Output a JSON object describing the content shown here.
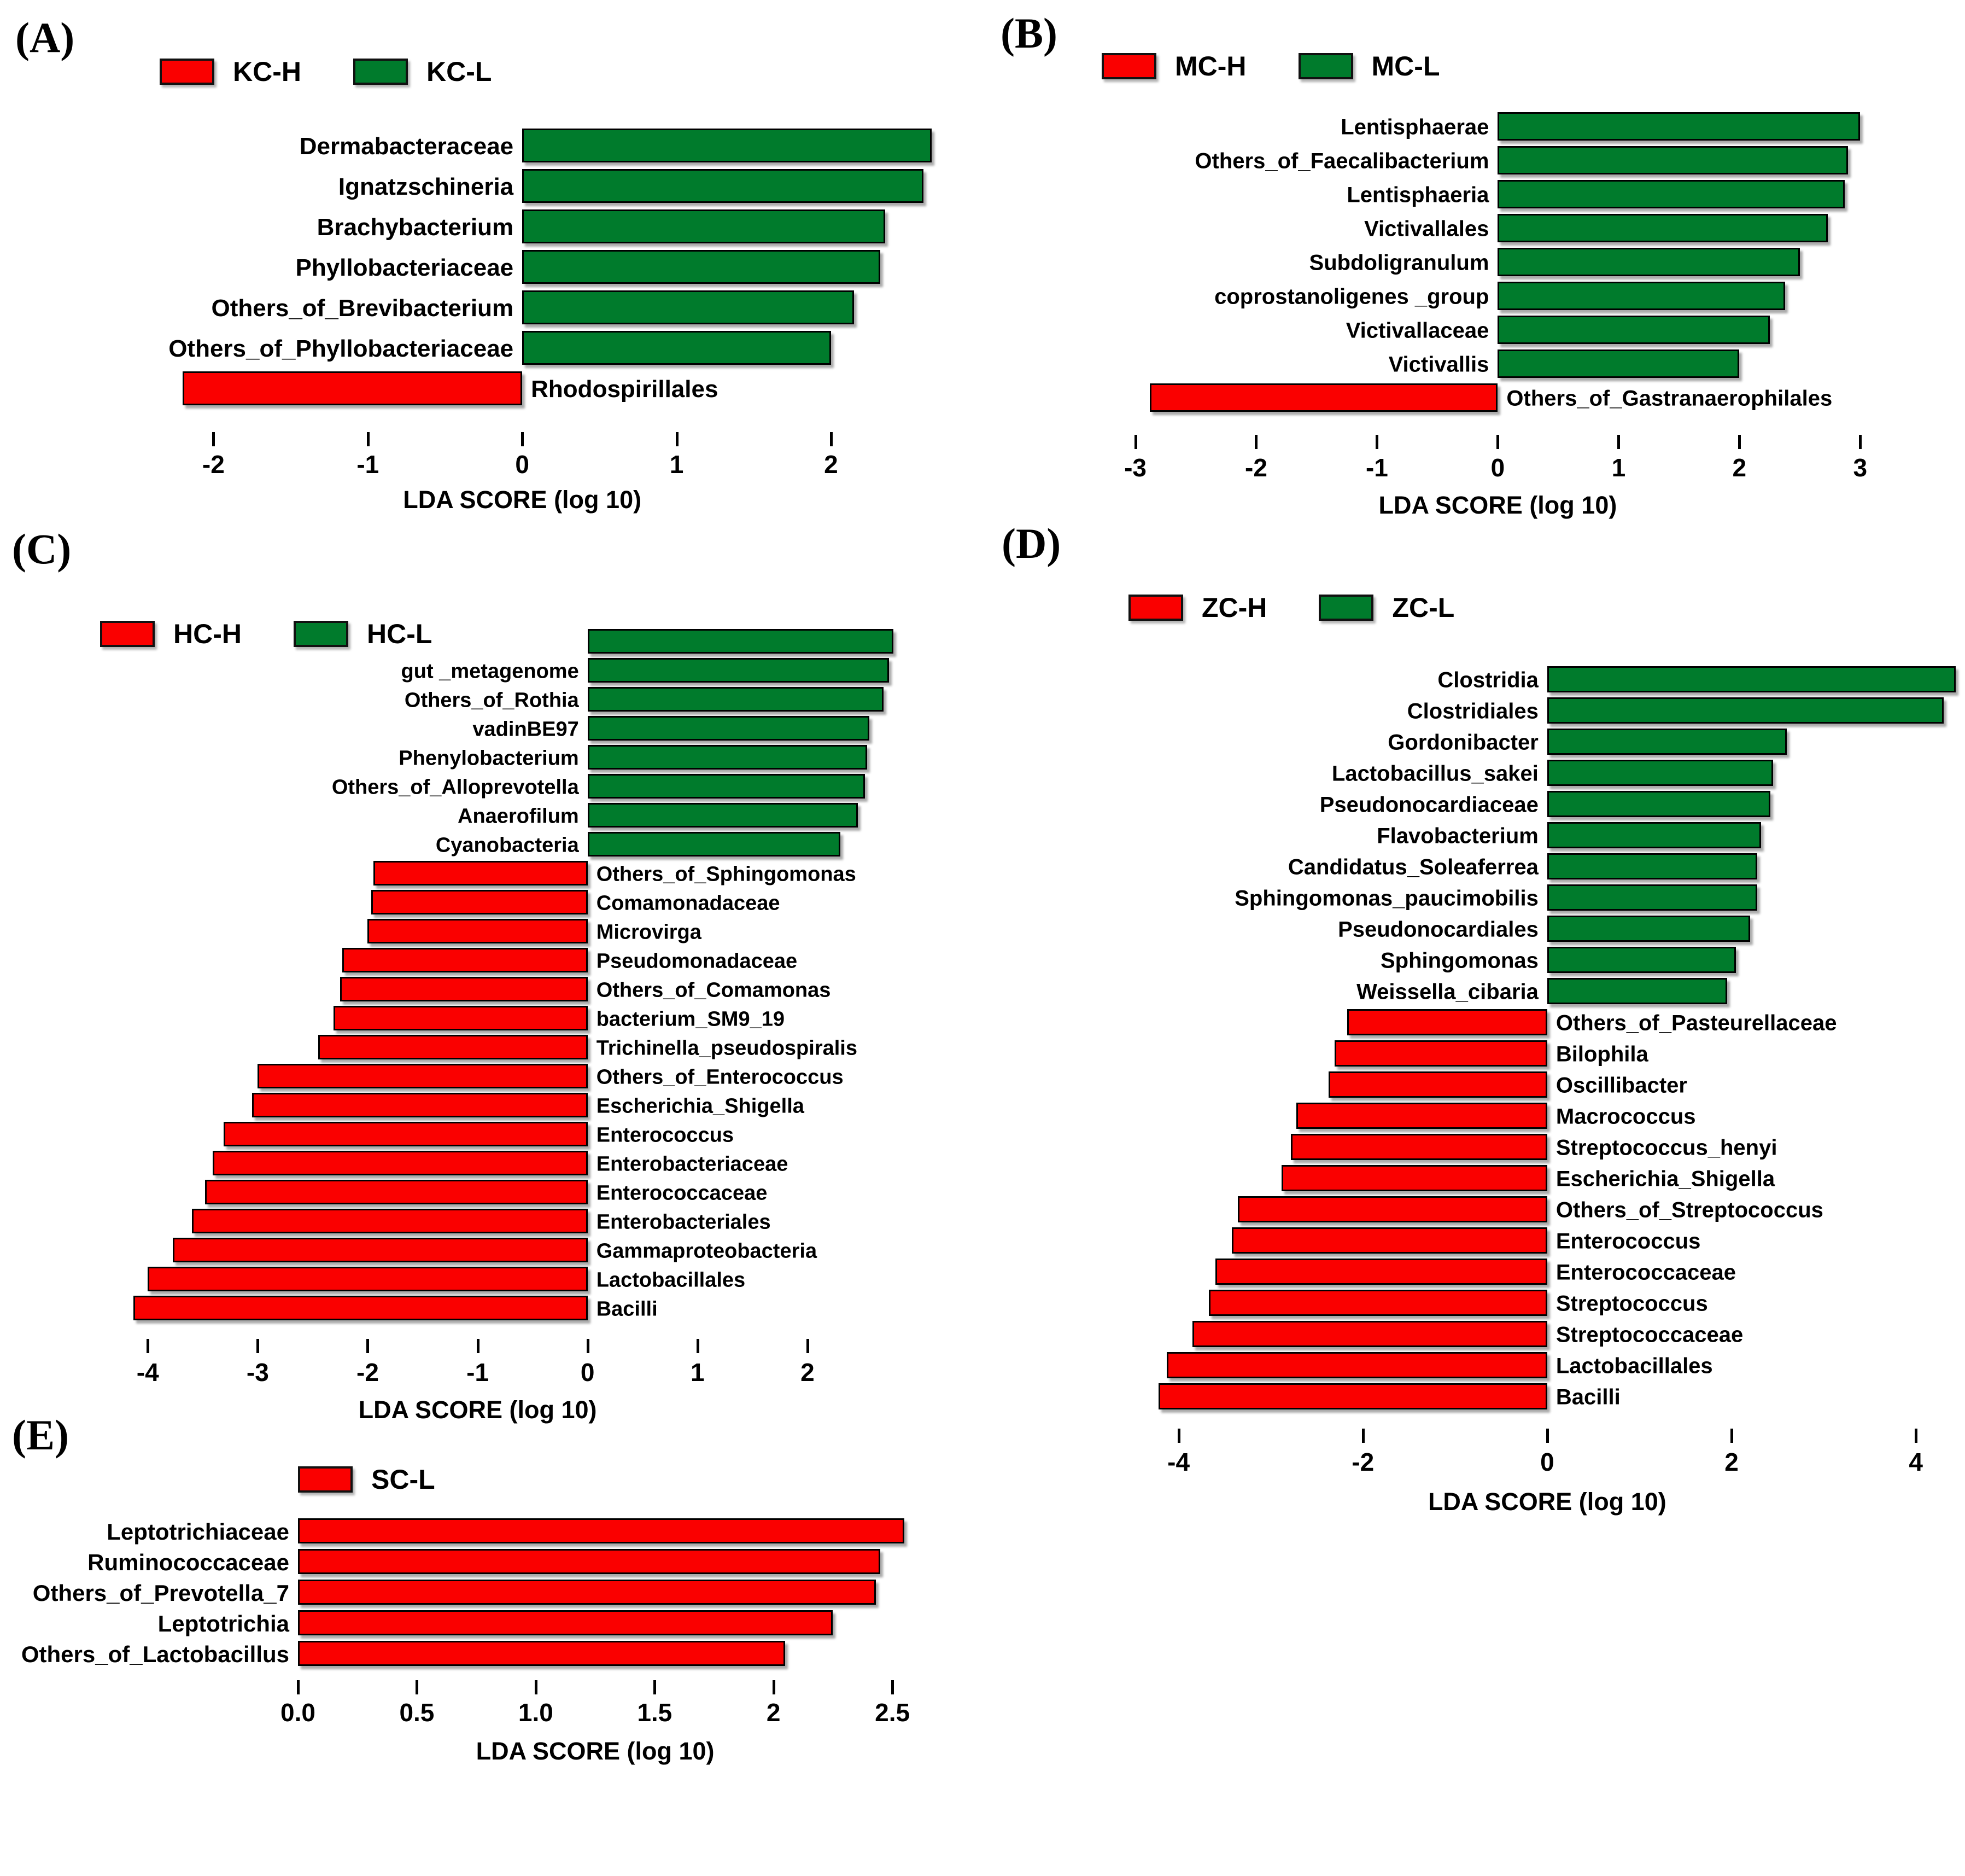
{
  "figure": {
    "axis_label": "LDA SCORE (log 10)",
    "colors": {
      "high_group_red": "#fa0000",
      "low_group_green": "#007b2c"
    }
  },
  "chart_data": [
    {
      "panel": "A",
      "letter_label": "(A)",
      "type": "bar",
      "orientation": "horizontal",
      "xlabel": "LDA SCORE (log 10)",
      "xlim": [
        -2.32,
        2.85
      ],
      "xticks": [
        {
          "value": -2,
          "label": "-2"
        },
        {
          "value": -1,
          "label": "-1"
        },
        {
          "value": 0,
          "label": "0"
        },
        {
          "value": 1,
          "label": "1"
        },
        {
          "value": 2,
          "label": "2"
        }
      ],
      "legend_position": "top",
      "legend": [
        {
          "label": "KC-H",
          "color": "#fa0000"
        },
        {
          "label": "KC-L",
          "color": "#007b2c"
        }
      ],
      "bars": [
        {
          "label": "Dermabacteraceae",
          "value": 2.65,
          "series": "KC-L"
        },
        {
          "label": "Ignatzschineria",
          "value": 2.6,
          "series": "KC-L"
        },
        {
          "label": "Brachybacterium",
          "value": 2.35,
          "series": "KC-L"
        },
        {
          "label": "Phyllobacteriaceae",
          "value": 2.32,
          "series": "KC-L"
        },
        {
          "label": "Others_of_Brevibacterium",
          "value": 2.15,
          "series": "KC-L"
        },
        {
          "label": "Others_of_Phyllobacteriaceae",
          "value": 2.0,
          "series": "KC-L"
        },
        {
          "label": "Rhodospirillales",
          "value": -2.2,
          "series": "KC-H"
        }
      ]
    },
    {
      "panel": "B",
      "letter_label": "(B)",
      "type": "bar",
      "orientation": "horizontal",
      "xlabel": "LDA SCORE (log 10)",
      "xlim": [
        -3.12,
        3.08
      ],
      "xticks": [
        {
          "value": -3,
          "label": "-3"
        },
        {
          "value": -2,
          "label": "-2"
        },
        {
          "value": -1,
          "label": "-1"
        },
        {
          "value": 0,
          "label": "0"
        },
        {
          "value": 1,
          "label": "1"
        },
        {
          "value": 2,
          "label": "2"
        },
        {
          "value": 3,
          "label": "3"
        }
      ],
      "legend_position": "top",
      "legend": [
        {
          "label": "MC-H",
          "color": "#fa0000"
        },
        {
          "label": "MC-L",
          "color": "#007b2c"
        }
      ],
      "bars": [
        {
          "label": "Lentisphaerae",
          "value": 3.0,
          "series": "MC-L"
        },
        {
          "label": "Others_of_Faecalibacterium",
          "value": 2.9,
          "series": "MC-L"
        },
        {
          "label": "Lentisphaeria",
          "value": 2.87,
          "series": "MC-L"
        },
        {
          "label": "Victivallales",
          "value": 2.73,
          "series": "MC-L"
        },
        {
          "label": "Subdoligranulum",
          "value": 2.5,
          "series": "MC-L"
        },
        {
          "label": "coprostanoligenes _group",
          "value": 2.38,
          "series": "MC-L"
        },
        {
          "label": "Victivallaceae",
          "value": 2.25,
          "series": "MC-L"
        },
        {
          "label": "Victivallis",
          "value": 2.0,
          "series": "MC-L"
        },
        {
          "label": "Others_of_Gastranaerophilales",
          "value": -2.88,
          "series": "MC-H"
        }
      ]
    },
    {
      "panel": "C",
      "letter_label": "(C)",
      "type": "bar",
      "orientation": "horizontal",
      "xlabel": "LDA SCORE (log 10)",
      "xlim": [
        -4.2,
        2.91
      ],
      "xticks": [
        {
          "value": -4,
          "label": "-4"
        },
        {
          "value": -3,
          "label": "-3"
        },
        {
          "value": -2,
          "label": "-2"
        },
        {
          "value": -1,
          "label": "-1"
        },
        {
          "value": 0,
          "label": "0"
        },
        {
          "value": 1,
          "label": "1"
        },
        {
          "value": 2,
          "label": "2"
        }
      ],
      "legend_position": "top",
      "legend": [
        {
          "label": "HC-H",
          "color": "#fa0000"
        },
        {
          "label": "HC-L",
          "color": "#007b2c"
        }
      ],
      "bars": [
        {
          "label": "",
          "value": 2.78,
          "series": "HC-L"
        },
        {
          "label": "gut _metagenome",
          "value": 2.74,
          "series": "HC-L"
        },
        {
          "label": "Others_of_Rothia",
          "value": 2.69,
          "series": "HC-L"
        },
        {
          "label": "vadinBE97",
          "value": 2.56,
          "series": "HC-L"
        },
        {
          "label": "Phenylobacterium",
          "value": 2.54,
          "series": "HC-L"
        },
        {
          "label": "Others_of_Alloprevotella",
          "value": 2.52,
          "series": "HC-L"
        },
        {
          "label": "Anaerofilum",
          "value": 2.46,
          "series": "HC-L"
        },
        {
          "label": "Cyanobacteria",
          "value": 2.3,
          "series": "HC-L"
        },
        {
          "label": "Others_of_Sphingomonas",
          "value": -1.95,
          "series": "HC-H"
        },
        {
          "label": "Comamonadaceae",
          "value": -1.97,
          "series": "HC-H"
        },
        {
          "label": "Microvirga",
          "value": -2.0,
          "series": "HC-H"
        },
        {
          "label": "Pseudomonadaceae",
          "value": -2.23,
          "series": "HC-H"
        },
        {
          "label": "Others_of_Comamonas",
          "value": -2.25,
          "series": "HC-H"
        },
        {
          "label": "bacterium_SM9_19",
          "value": -2.31,
          "series": "HC-H"
        },
        {
          "label": "Trichinella_pseudospiralis",
          "value": -2.45,
          "series": "HC-H"
        },
        {
          "label": "Others_of_Enterococcus",
          "value": -3.0,
          "series": "HC-H"
        },
        {
          "label": "Escherichia_Shigella",
          "value": -3.05,
          "series": "HC-H"
        },
        {
          "label": "Enterococcus",
          "value": -3.31,
          "series": "HC-H"
        },
        {
          "label": "Enterobacteriaceae",
          "value": -3.41,
          "series": "HC-H"
        },
        {
          "label": "Enterococcaceae",
          "value": -3.48,
          "series": "HC-H"
        },
        {
          "label": "Enterobacteriales",
          "value": -3.6,
          "series": "HC-H"
        },
        {
          "label": "Gammaproteobacteria",
          "value": -3.77,
          "series": "HC-H"
        },
        {
          "label": "Lactobacillales",
          "value": -4.0,
          "series": "HC-H"
        },
        {
          "label": "Bacilli",
          "value": -4.13,
          "series": "HC-H"
        }
      ]
    },
    {
      "panel": "D",
      "letter_label": "(D)",
      "type": "bar",
      "orientation": "horizontal",
      "xlabel": "LDA SCORE (log 10)",
      "xlim": [
        -4.33,
        4.45
      ],
      "xticks": [
        {
          "value": -4,
          "label": "-4"
        },
        {
          "value": -2,
          "label": "-2"
        },
        {
          "value": 0,
          "label": "0"
        },
        {
          "value": 2,
          "label": "2"
        },
        {
          "value": 4,
          "label": "4"
        }
      ],
      "legend_position": "top",
      "legend": [
        {
          "label": "ZC-H",
          "color": "#fa0000"
        },
        {
          "label": "ZC-L",
          "color": "#007b2c"
        }
      ],
      "bars": [
        {
          "label": "Clostridia",
          "value": 4.43,
          "series": "ZC-L"
        },
        {
          "label": "Clostridiales",
          "value": 4.3,
          "series": "ZC-L"
        },
        {
          "label": "Gordonibacter",
          "value": 2.6,
          "series": "ZC-L"
        },
        {
          "label": "Lactobacillus_sakei",
          "value": 2.45,
          "series": "ZC-L"
        },
        {
          "label": "Pseudonocardiaceae",
          "value": 2.42,
          "series": "ZC-L"
        },
        {
          "label": "Flavobacterium",
          "value": 2.32,
          "series": "ZC-L"
        },
        {
          "label": "Candidatus_Soleaferrea",
          "value": 2.28,
          "series": "ZC-L"
        },
        {
          "label": "Sphingomonas_paucimobilis",
          "value": 2.28,
          "series": "ZC-L"
        },
        {
          "label": "Pseudonocardiales",
          "value": 2.2,
          "series": "ZC-L"
        },
        {
          "label": "Sphingomonas",
          "value": 2.05,
          "series": "ZC-L"
        },
        {
          "label": "Weissella_cibaria",
          "value": 1.95,
          "series": "ZC-L"
        },
        {
          "label": "Others_of_Pasteurellaceae",
          "value": -2.17,
          "series": "ZC-H"
        },
        {
          "label": "Bilophila",
          "value": -2.31,
          "series": "ZC-H"
        },
        {
          "label": "Oscillibacter",
          "value": -2.37,
          "series": "ZC-H"
        },
        {
          "label": "Macrococcus",
          "value": -2.72,
          "series": "ZC-H"
        },
        {
          "label": "Streptococcus_henyi",
          "value": -2.78,
          "series": "ZC-H"
        },
        {
          "label": "Escherichia_Shigella",
          "value": -2.88,
          "series": "ZC-H"
        },
        {
          "label": "Others_of_Streptococcus",
          "value": -3.36,
          "series": "ZC-H"
        },
        {
          "label": "Enterococcus",
          "value": -3.42,
          "series": "ZC-H"
        },
        {
          "label": "Enterococcaceae",
          "value": -3.6,
          "series": "ZC-H"
        },
        {
          "label": "Streptococcus",
          "value": -3.67,
          "series": "ZC-H"
        },
        {
          "label": "Streptococcaceae",
          "value": -3.85,
          "series": "ZC-H"
        },
        {
          "label": "Lactobacillales",
          "value": -4.13,
          "series": "ZC-H"
        },
        {
          "label": "Bacilli",
          "value": -4.22,
          "series": "ZC-H"
        }
      ]
    },
    {
      "panel": "E",
      "letter_label": "(E)",
      "type": "bar",
      "orientation": "horizontal",
      "xlabel": "LDA SCORE (log 10)",
      "xlim": [
        0,
        2.61
      ],
      "xticks": [
        {
          "value": 0,
          "label": "0.0"
        },
        {
          "value": 0.5,
          "label": "0.5"
        },
        {
          "value": 1,
          "label": "1.0"
        },
        {
          "value": 1.5,
          "label": "1.5"
        },
        {
          "value": 2,
          "label": "2"
        },
        {
          "value": 2.5,
          "label": "2.5"
        }
      ],
      "legend_position": "top",
      "legend": [
        {
          "label": "SC-L",
          "color": "#fa0000"
        }
      ],
      "bars": [
        {
          "label": "Leptotrichiaceae",
          "value": 2.55,
          "series": "SC-L"
        },
        {
          "label": "Ruminococcaceae",
          "value": 2.45,
          "series": "SC-L"
        },
        {
          "label": "Others_of_Prevotella_7",
          "value": 2.43,
          "series": "SC-L"
        },
        {
          "label": "Leptotrichia",
          "value": 2.25,
          "series": "SC-L"
        },
        {
          "label": "Others_of_Lactobacillus",
          "value": 2.05,
          "series": "SC-L"
        }
      ]
    }
  ]
}
